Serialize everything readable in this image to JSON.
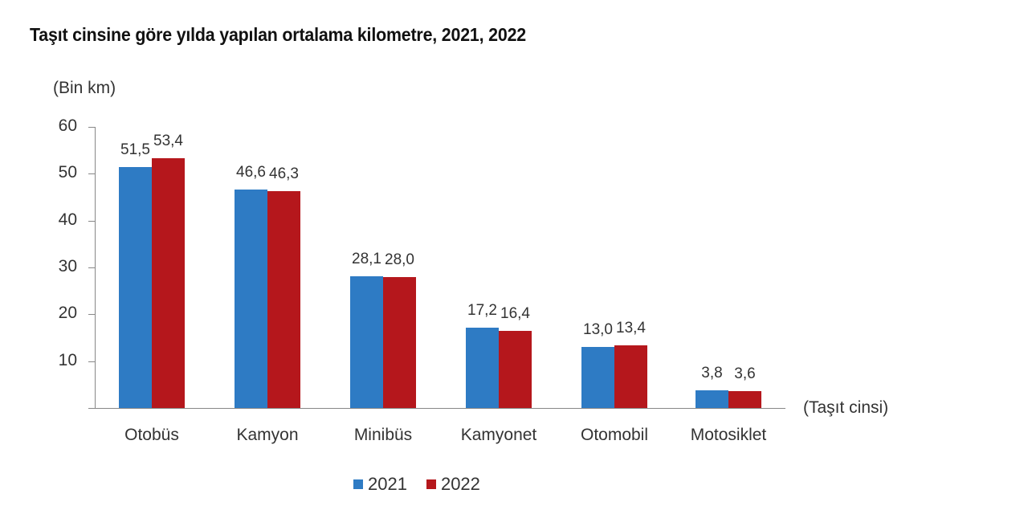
{
  "chart_data": {
    "type": "bar",
    "title": "Taşıt cinsine göre yılda yapılan ortalama kilometre, 2021, 2022",
    "ylabel": "(Bin km)",
    "xlabel": "(Taşıt cinsi)",
    "ylim": [
      0,
      60
    ],
    "yticks": [
      "10",
      "20",
      "30",
      "40",
      "50",
      "60"
    ],
    "grid": false,
    "legend_position": "bottom",
    "categories": [
      "Otobüs",
      "Kamyon",
      "Minibüs",
      "Kamyonet",
      "Otomobil",
      "Motosiklet"
    ],
    "series": [
      {
        "name": "2021",
        "color": "#2e7bc4",
        "values": [
          51.5,
          46.6,
          28.1,
          17.2,
          13.0,
          3.8
        ],
        "labels": [
          "51,5",
          "46,6",
          "28,1",
          "17,2",
          "13,0",
          "3,8"
        ]
      },
      {
        "name": "2022",
        "color": "#b5171c",
        "values": [
          53.4,
          46.3,
          28.0,
          16.4,
          13.4,
          3.6
        ],
        "labels": [
          "53,4",
          "46,3",
          "28,0",
          "16,4",
          "13,4",
          "3,6"
        ]
      }
    ]
  }
}
